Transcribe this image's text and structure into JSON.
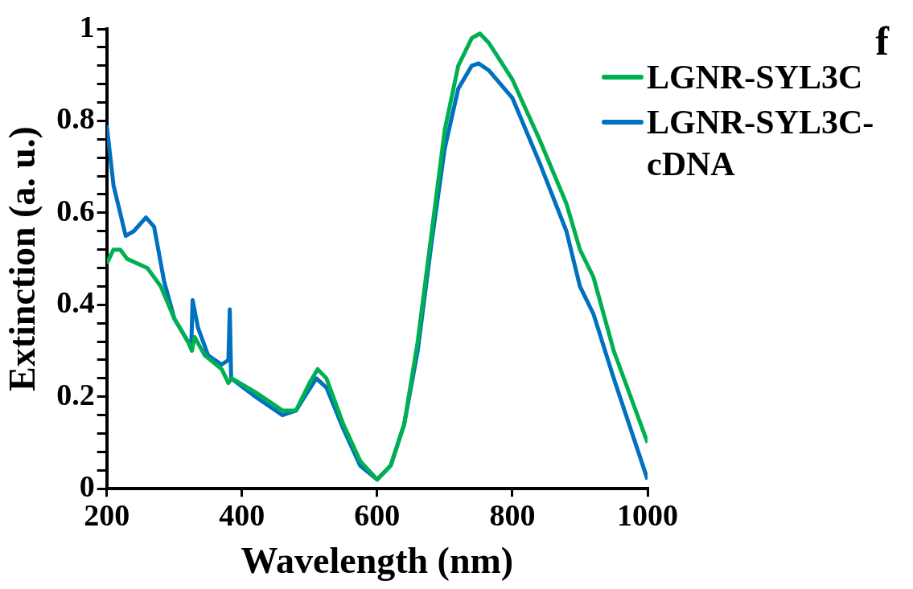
{
  "chart_data": {
    "type": "line",
    "xlabel": "Wavelength (nm)",
    "ylabel": "Extinction (a. u.)",
    "annotations": [
      "f"
    ],
    "xlim": [
      200,
      1000
    ],
    "xticks": [
      200,
      400,
      600,
      800,
      1000
    ],
    "ylim": [
      0,
      1
    ],
    "yticks": [
      0,
      {
        "value": 0.04,
        "label": null
      },
      {
        "value": 0.08,
        "label": null
      },
      {
        "value": 0.12,
        "label": null
      },
      {
        "value": 0.16,
        "label": null
      },
      0.2,
      {
        "value": 0.24,
        "label": null
      },
      {
        "value": 0.28,
        "label": null
      },
      {
        "value": 0.32,
        "label": null
      },
      {
        "value": 0.36,
        "label": null
      },
      0.4,
      {
        "value": 0.44,
        "label": null
      },
      {
        "value": 0.48,
        "label": null
      },
      {
        "value": 0.52,
        "label": null
      },
      {
        "value": 0.56,
        "label": null
      },
      0.6,
      {
        "value": 0.64,
        "label": null
      },
      {
        "value": 0.68,
        "label": null
      },
      {
        "value": 0.72,
        "label": null
      },
      {
        "value": 0.76,
        "label": null
      },
      0.8,
      {
        "value": 0.84,
        "label": null
      },
      {
        "value": 0.88,
        "label": null
      },
      {
        "value": 0.92,
        "label": null
      },
      {
        "value": 0.96,
        "label": null
      },
      1
    ],
    "grid": false,
    "legend": "top right",
    "marker": "none",
    "line_style": "solid",
    "series": [
      {
        "name": "LGNR-SYL3C",
        "color": "#00b050",
        "x": [
          200,
          210,
          220,
          230,
          260,
          280,
          300,
          320,
          326,
          330,
          345,
          370,
          380,
          385,
          420,
          460,
          480,
          500,
          512,
          525,
          550,
          575,
          600,
          620,
          640,
          660,
          680,
          700,
          720,
          740,
          752,
          765,
          800,
          840,
          880,
          900,
          920,
          950,
          1000
        ],
        "values": [
          0.49,
          0.52,
          0.52,
          0.5,
          0.48,
          0.44,
          0.37,
          0.32,
          0.3,
          0.33,
          0.29,
          0.26,
          0.23,
          0.24,
          0.21,
          0.17,
          0.17,
          0.23,
          0.26,
          0.24,
          0.14,
          0.06,
          0.02,
          0.05,
          0.14,
          0.32,
          0.55,
          0.78,
          0.92,
          0.98,
          0.99,
          0.97,
          0.89,
          0.76,
          0.62,
          0.52,
          0.46,
          0.3,
          0.1
        ]
      },
      {
        "name": "LGNR-SYL3C-cDNA",
        "color": "#0070c0",
        "x": [
          200,
          210,
          228,
          240,
          258,
          270,
          285,
          300,
          320,
          325,
          327,
          335,
          350,
          370,
          380,
          382,
          384,
          420,
          460,
          480,
          497,
          510,
          525,
          550,
          575,
          600,
          620,
          640,
          660,
          680,
          700,
          720,
          740,
          750,
          765,
          800,
          840,
          880,
          900,
          920,
          950,
          1000
        ],
        "values": [
          0.79,
          0.66,
          0.55,
          0.56,
          0.59,
          0.57,
          0.45,
          0.37,
          0.32,
          0.31,
          0.41,
          0.35,
          0.29,
          0.27,
          0.28,
          0.39,
          0.24,
          0.2,
          0.16,
          0.17,
          0.21,
          0.24,
          0.22,
          0.13,
          0.05,
          0.02,
          0.05,
          0.14,
          0.3,
          0.53,
          0.74,
          0.87,
          0.92,
          0.925,
          0.91,
          0.85,
          0.71,
          0.56,
          0.44,
          0.38,
          0.24,
          0.02
        ]
      }
    ]
  }
}
